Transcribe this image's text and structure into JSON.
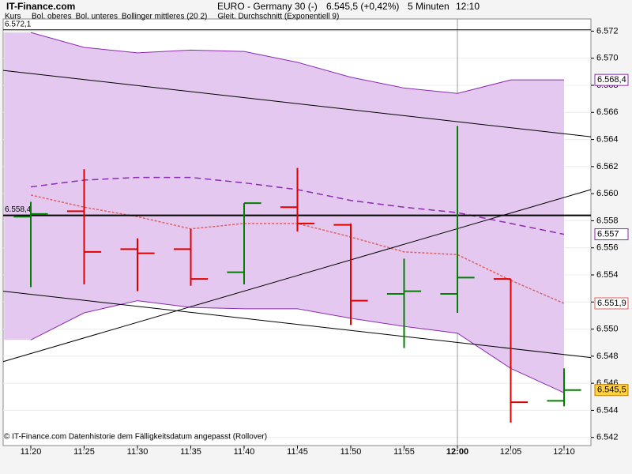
{
  "chart_data": {
    "type": "ohlc",
    "source": "IT-Finance.com",
    "title": "EURO - Germany 30 (-)",
    "quote": "6.545,5 (+0,42%)",
    "interval": "5 Minuten",
    "time": "12:10",
    "footer": "© IT-Finance.com  Datenhistorie dem Fälligkeitsdatum angepasst (Rollover)",
    "price_name": "Kurs",
    "categories": [
      "11:20",
      "11:25",
      "11:30",
      "11:35",
      "11:40",
      "11:45",
      "11:50",
      "11:55",
      "12:00",
      "12:05",
      "12:10"
    ],
    "highlight": 8,
    "open": [
      6558.3,
      6558.7,
      6555.9,
      6555.9,
      6554.2,
      6559.0,
      6557.7,
      6552.6,
      6552.6,
      6553.7,
      6544.7
    ],
    "high": [
      6559.4,
      6561.8,
      6556.7,
      6557.4,
      6559.3,
      6561.9,
      6557.8,
      6555.2,
      6565.0,
      6553.7,
      6547.1
    ],
    "low": [
      6553.1,
      6553.3,
      6552.8,
      6553.2,
      6553.3,
      6557.2,
      6550.3,
      6548.6,
      6551.2,
      6543.1,
      6544.3
    ],
    "close": [
      6558.5,
      6555.7,
      6555.6,
      6553.7,
      6559.3,
      6557.8,
      6552.1,
      6552.8,
      6553.8,
      6544.6,
      6545.5
    ],
    "close_labels": [
      null,
      null,
      null,
      null,
      null,
      null,
      null,
      null,
      null,
      null,
      "6.545,5"
    ],
    "up_color": "#008000",
    "down_color": "#e00000",
    "band_color": "#e4c8f0",
    "series": [
      {
        "name": "Bol. oberes",
        "color": "#8a2bb0",
        "dashed": false,
        "values": [
          6571.9,
          6570.8,
          6570.4,
          6570.6,
          6570.5,
          6569.7,
          6568.6,
          6567.8,
          6567.4,
          6568.4,
          6568.4
        ],
        "value_labels": [
          null,
          null,
          null,
          null,
          null,
          null,
          null,
          null,
          null,
          null,
          "6.568,4"
        ]
      },
      {
        "name": "Bol. unteres",
        "color": "#8a2bb0",
        "dashed": false,
        "values": [
          6549.2,
          6551.2,
          6552.1,
          6551.6,
          6551.5,
          6551.5,
          6550.8,
          6550.2,
          6549.7,
          6547.1,
          6545.3
        ]
      },
      {
        "name": "Bollinger mittleres (20 2)",
        "color": "#8a2bb0",
        "dashed": true,
        "values": [
          6560.5,
          6561.0,
          6561.2,
          6561.2,
          6560.8,
          6560.3,
          6559.5,
          6559.0,
          6558.6,
          6557.8,
          6557.0
        ],
        "value_labels": [
          null,
          null,
          null,
          null,
          null,
          null,
          null,
          null,
          null,
          null,
          "6.557"
        ]
      },
      {
        "name": "Gleit. Durchschnitt (Exponentiell 9)",
        "color": "#e06060",
        "dashed": true,
        "values": [
          6559.9,
          6559.0,
          6558.3,
          6557.4,
          6557.8,
          6557.8,
          6556.8,
          6555.7,
          6555.5,
          6553.6,
          6551.9
        ],
        "value_labels": [
          null,
          null,
          null,
          null,
          null,
          null,
          null,
          null,
          null,
          null,
          "6.551,9"
        ]
      }
    ],
    "hlines": [
      {
        "value": 6572.1,
        "label": "6.572,1"
      },
      {
        "value": 6558.4,
        "label": "6.558,4"
      }
    ],
    "trendlines": [
      [
        6569.1,
        6564.2
      ],
      [
        6552.8,
        6547.9
      ],
      [
        6547.6,
        6560.3
      ]
    ],
    "ylim": [
      6541.4,
      6572.9
    ],
    "yticks": [
      {
        "value": 6542,
        "label": "6.542"
      },
      {
        "value": 6544,
        "label": "6.544"
      },
      {
        "value": 6546,
        "label": "6.546"
      },
      {
        "value": 6548,
        "label": "6.548"
      },
      {
        "value": 6550,
        "label": "6.550"
      },
      {
        "value": 6552,
        "label": "6.552"
      },
      {
        "value": 6554,
        "label": "6.554"
      },
      {
        "value": 6556,
        "label": "6.556"
      },
      {
        "value": 6558,
        "label": "6.558"
      },
      {
        "value": 6560,
        "label": "6.560"
      },
      {
        "value": 6562,
        "label": "6.562"
      },
      {
        "value": 6564,
        "label": "6.564"
      },
      {
        "value": 6566,
        "label": "6.566"
      },
      {
        "value": 6568,
        "label": "6.568"
      },
      {
        "value": 6570,
        "label": "6.570"
      },
      {
        "value": 6572,
        "label": "6.572"
      }
    ],
    "grid": true
  }
}
